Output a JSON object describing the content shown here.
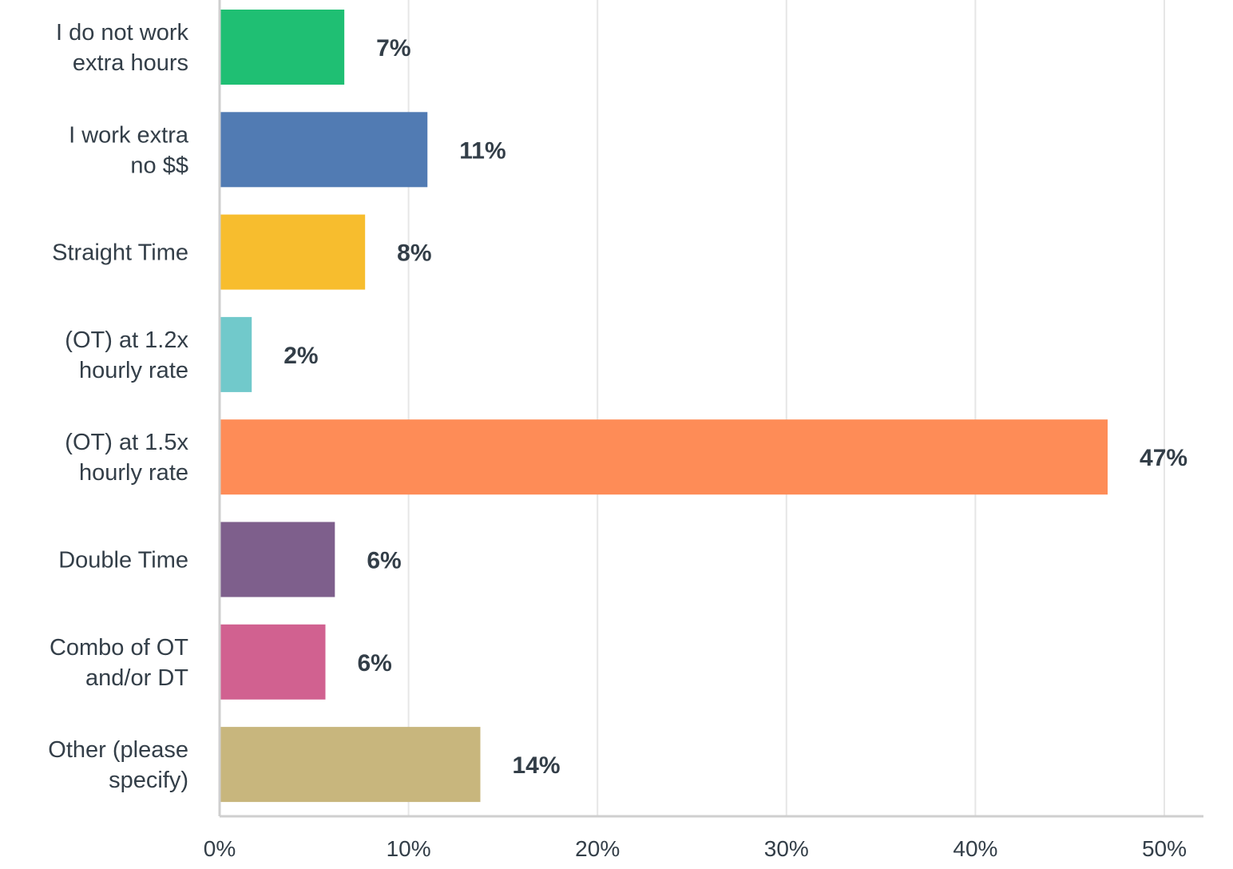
{
  "chart_data": {
    "type": "bar",
    "orientation": "horizontal",
    "categories": [
      [
        "I do not work",
        "extra hours"
      ],
      [
        "I work extra",
        "no $$"
      ],
      [
        "Straight Time"
      ],
      [
        "(OT) at 1.2x",
        "hourly rate"
      ],
      [
        "(OT) at 1.5x",
        "hourly rate"
      ],
      [
        "Double Time"
      ],
      [
        "Combo of OT",
        "and/or DT"
      ],
      [
        "Other (please",
        "specify)"
      ]
    ],
    "values": [
      6.6,
      11.0,
      7.7,
      1.7,
      47.0,
      6.1,
      5.6,
      13.8
    ],
    "value_labels": [
      "7%",
      "11%",
      "8%",
      "2%",
      "47%",
      "6%",
      "6%",
      "14%"
    ],
    "colors": [
      "#1fbf73",
      "#517bb3",
      "#f7bd2e",
      "#71c9cb",
      "#fe8c57",
      "#7e5f8c",
      "#d16190",
      "#c8b67d"
    ],
    "xlim": [
      0,
      52
    ],
    "xticks": [
      0,
      10,
      20,
      30,
      40,
      50
    ],
    "xtick_labels": [
      "0%",
      "10%",
      "20%",
      "30%",
      "40%",
      "50%"
    ],
    "grid": true,
    "title": "",
    "xlabel": "",
    "ylabel": ""
  }
}
